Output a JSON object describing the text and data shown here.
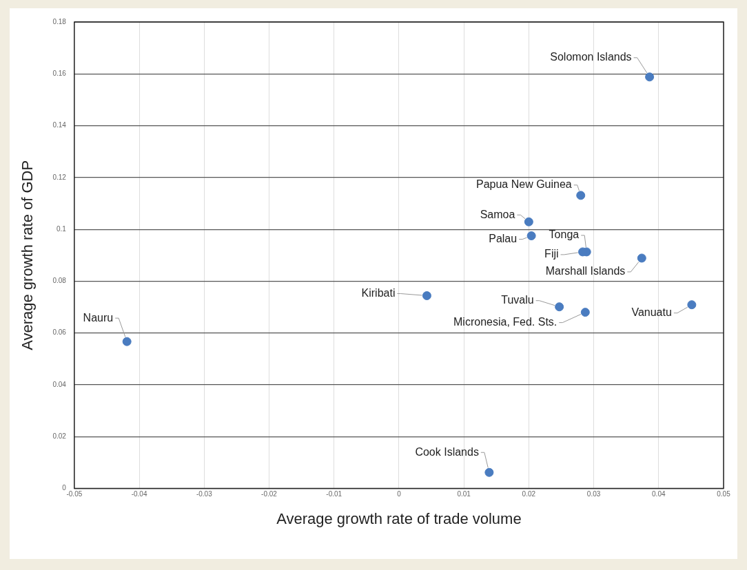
{
  "chart_data": {
    "type": "scatter",
    "xlabel": "Average growth rate of trade volume",
    "ylabel": "Average growth rate of GDP",
    "series": [
      {
        "color": "#4a7cc0",
        "x": [
          0.0386,
          0.028,
          0.02,
          0.0204,
          0.0289,
          0.0283,
          0.0374,
          0.0043,
          0.0247,
          0.0287,
          0.0451,
          -0.0419,
          0.0139
        ],
        "values": [
          0.1588,
          0.1131,
          0.1029,
          0.0975,
          0.0913,
          0.0913,
          0.0889,
          0.0744,
          0.0701,
          0.068,
          0.0709,
          0.0567,
          0.0062
        ]
      }
    ],
    "annotations": [
      {
        "text": "Solomon Islands",
        "x": 0.0386,
        "y": 0.1588
      },
      {
        "text": "Papua New Guinea",
        "x": 0.028,
        "y": 0.1131
      },
      {
        "text": "Samoa",
        "x": 0.02,
        "y": 0.1029
      },
      {
        "text": "Palau",
        "x": 0.0204,
        "y": 0.0975
      },
      {
        "text": "Tonga",
        "x": 0.0289,
        "y": 0.0913
      },
      {
        "text": "Fiji",
        "x": 0.0283,
        "y": 0.0913
      },
      {
        "text": "Marshall Islands",
        "x": 0.0374,
        "y": 0.0889
      },
      {
        "text": "Kiribati",
        "x": 0.0043,
        "y": 0.0744
      },
      {
        "text": "Tuvalu",
        "x": 0.0247,
        "y": 0.0701
      },
      {
        "text": "Micronesia, Fed. Sts.",
        "x": 0.0287,
        "y": 0.068
      },
      {
        "text": "Vanuatu",
        "x": 0.0451,
        "y": 0.0709
      },
      {
        "text": "Nauru",
        "x": -0.0419,
        "y": 0.0567
      },
      {
        "text": "Cook Islands",
        "x": 0.0139,
        "y": 0.0062
      }
    ],
    "xlim": [
      -0.05,
      0.05
    ],
    "xticks": [
      -0.05,
      -0.04,
      -0.03,
      -0.02,
      -0.01,
      0,
      0.01,
      0.02,
      0.03,
      0.04,
      0.05
    ],
    "ylim": [
      0,
      0.18
    ],
    "yticks": [
      0,
      0.02,
      0.04,
      0.06,
      0.08,
      0.1,
      0.12,
      0.14,
      0.16,
      0.18
    ],
    "grid": true,
    "legend": false,
    "marker": "circle"
  }
}
